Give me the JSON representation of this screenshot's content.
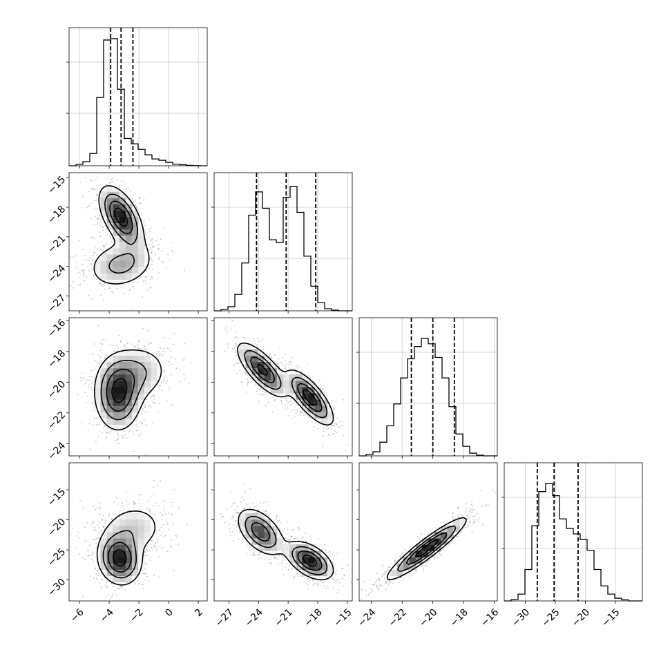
{
  "chart_data": {
    "type": "corner",
    "params": [
      {
        "range": [
          -6.7,
          2.6
        ],
        "ticks": [
          -6,
          -4,
          -2,
          0,
          2
        ],
        "quantiles": [
          -3.9,
          -3.2,
          -2.4
        ],
        "hist_bins": [
          0.0,
          0.01,
          0.03,
          0.09,
          0.5,
          0.92,
          0.93,
          0.56,
          0.2,
          0.16,
          0.12,
          0.08,
          0.05,
          0.04,
          0.025,
          0.012,
          0.008,
          0.003,
          0.001,
          0.0
        ]
      },
      {
        "range": [
          -28.5,
          -14.5
        ],
        "ticks": [
          -27,
          -24,
          -21,
          -18,
          -15
        ],
        "quantiles": [
          -24.2,
          -21.2,
          -18.2
        ],
        "hist_bins": [
          0.0,
          0.01,
          0.03,
          0.12,
          0.35,
          0.7,
          0.87,
          0.75,
          0.52,
          0.5,
          0.83,
          0.91,
          0.72,
          0.4,
          0.18,
          0.06,
          0.015,
          0.005,
          0.0,
          0.0
        ]
      },
      {
        "range": [
          -24.8,
          -15.8
        ],
        "ticks": [
          -24,
          -22,
          -20,
          -18,
          -16
        ],
        "quantiles": [
          -21.4,
          -20.0,
          -18.6
        ],
        "hist_bins": [
          0.0,
          0.01,
          0.03,
          0.1,
          0.22,
          0.38,
          0.57,
          0.71,
          0.8,
          0.86,
          0.82,
          0.72,
          0.57,
          0.36,
          0.16,
          0.07,
          0.02,
          0.005,
          0.0,
          0.0
        ]
      },
      {
        "range": [
          -33.5,
          -10.5
        ],
        "ticks": [
          -30,
          -25,
          -20,
          -15
        ],
        "quantiles": [
          -28.0,
          -25.2,
          -21.2
        ],
        "hist_bins": [
          0.0,
          0.01,
          0.05,
          0.23,
          0.55,
          0.8,
          0.86,
          0.77,
          0.6,
          0.53,
          0.49,
          0.45,
          0.37,
          0.23,
          0.11,
          0.05,
          0.02,
          0.008,
          0.0,
          0.0
        ]
      }
    ],
    "yticks_2d": [
      [],
      [
        -15,
        -18,
        -21,
        -24,
        -27
      ],
      [
        -16,
        -18,
        -20,
        -22,
        -24
      ],
      [
        -15,
        -20,
        -25,
        -30
      ]
    ],
    "joint": [
      {
        "row": 1,
        "col": 0,
        "modes": [
          {
            "mu": [
              -3.2,
              -19.0
            ],
            "sd": [
              0.75,
              1.6
            ],
            "rho": -0.55,
            "w": 0.6
          },
          {
            "mu": [
              -3.2,
              -23.8
            ],
            "sd": [
              1.2,
              1.3
            ],
            "rho": 0.2,
            "w": 0.4
          }
        ]
      },
      {
        "row": 2,
        "col": 0,
        "modes": [
          {
            "mu": [
              -3.4,
              -20.8
            ],
            "sd": [
              0.8,
              1.2
            ],
            "rho": 0.0,
            "w": 0.65
          },
          {
            "mu": [
              -2.2,
              -19.4
            ],
            "sd": [
              1.2,
              1.0
            ],
            "rho": 0.1,
            "w": 0.35
          }
        ]
      },
      {
        "row": 2,
        "col": 1,
        "modes": [
          {
            "mu": [
              -23.6,
              -19.2
            ],
            "sd": [
              1.3,
              0.9
            ],
            "rho": -0.75,
            "w": 0.5
          },
          {
            "mu": [
              -18.8,
              -21.0
            ],
            "sd": [
              1.2,
              0.9
            ],
            "rho": -0.75,
            "w": 0.5
          }
        ]
      },
      {
        "row": 3,
        "col": 0,
        "modes": [
          {
            "mu": [
              -3.3,
              -26.5
            ],
            "sd": [
              0.75,
              2.2
            ],
            "rho": -0.1,
            "w": 0.65
          },
          {
            "mu": [
              -2.4,
              -21.5
            ],
            "sd": [
              1.2,
              2.4
            ],
            "rho": 0.1,
            "w": 0.35
          }
        ]
      },
      {
        "row": 3,
        "col": 1,
        "modes": [
          {
            "mu": [
              -23.8,
              -22.0
            ],
            "sd": [
              1.2,
              2.0
            ],
            "rho": -0.5,
            "w": 0.5
          },
          {
            "mu": [
              -18.8,
              -26.8
            ],
            "sd": [
              1.2,
              1.6
            ],
            "rho": -0.5,
            "w": 0.5
          }
        ]
      },
      {
        "row": 3,
        "col": 2,
        "modes": [
          {
            "mu": [
              -20.4,
              -24.8
            ],
            "sd": [
              1.3,
              2.6
            ],
            "rho": 0.93,
            "w": 1.0
          }
        ]
      }
    ]
  }
}
